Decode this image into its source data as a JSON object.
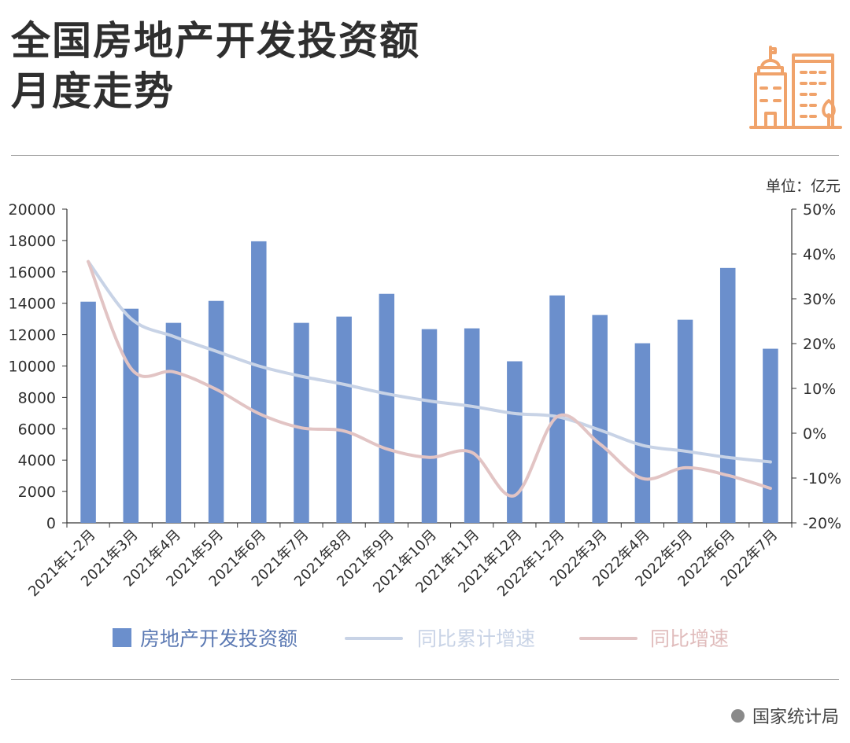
{
  "header": {
    "title_line1": "全国房地产开发投资额",
    "title_line2": "月度走势"
  },
  "icons": {
    "logo": "city-buildings-icon",
    "logo_color": "#f0a36b"
  },
  "unit_label": "单位：亿元",
  "source": "国家统计局",
  "chart_data": {
    "type": "bar",
    "categories": [
      "2021年1-2月",
      "2021年3月",
      "2021年4月",
      "2021年5月",
      "2021年6月",
      "2021年7月",
      "2021年8月",
      "2021年9月",
      "2021年10月",
      "2021年11月",
      "2021年12月",
      "2022年1-2月",
      "2022年3月",
      "2022年4月",
      "2022年5月",
      "2022年6月",
      "2022年7月"
    ],
    "series": [
      {
        "name": "房地产开发投资额",
        "type": "bar",
        "axis": "left",
        "color": "#6b8fcc",
        "values": [
          14100,
          13650,
          12750,
          14150,
          17950,
          12750,
          13150,
          14600,
          12350,
          12400,
          10300,
          14500,
          13250,
          11450,
          12950,
          16250,
          11100
        ]
      },
      {
        "name": "同比累计增速",
        "type": "line",
        "axis": "right",
        "color": "#c8d3e6",
        "values": [
          38.3,
          25.6,
          21.6,
          18.3,
          15.0,
          12.7,
          10.9,
          8.8,
          7.2,
          6.0,
          4.4,
          3.7,
          0.7,
          -2.7,
          -4.0,
          -5.4,
          -6.4
        ]
      },
      {
        "name": "同比增速",
        "type": "line",
        "axis": "right",
        "color": "#e2c4c4",
        "values": [
          38.3,
          14.5,
          13.7,
          9.8,
          4.4,
          1.2,
          0.5,
          -3.5,
          -5.4,
          -4.3,
          -13.9,
          3.7,
          -2.4,
          -10.1,
          -7.7,
          -9.4,
          -12.3
        ]
      }
    ],
    "y_left": {
      "min": 0,
      "max": 20000,
      "ticks": [
        "0",
        "2000",
        "4000",
        "6000",
        "8000",
        "10000",
        "12000",
        "14000",
        "16000",
        "18000",
        "20000"
      ]
    },
    "y_right": {
      "min": -20,
      "max": 50,
      "ticks": [
        "-20%",
        "-10%",
        "0%",
        "10%",
        "20%",
        "30%",
        "40%",
        "50%"
      ]
    },
    "legend": [
      {
        "label": "房地产开发投资额",
        "kind": "bar",
        "color": "#6b8fcc",
        "text_color": "#5b79b3"
      },
      {
        "label": "同比累计增速",
        "kind": "line",
        "color": "#c8d3e6",
        "text_color": "#c8d3e6"
      },
      {
        "label": "同比增速",
        "kind": "line",
        "color": "#e2c4c4",
        "text_color": "#e0bcbc"
      }
    ],
    "legend_position": "bottom",
    "grid": false
  }
}
